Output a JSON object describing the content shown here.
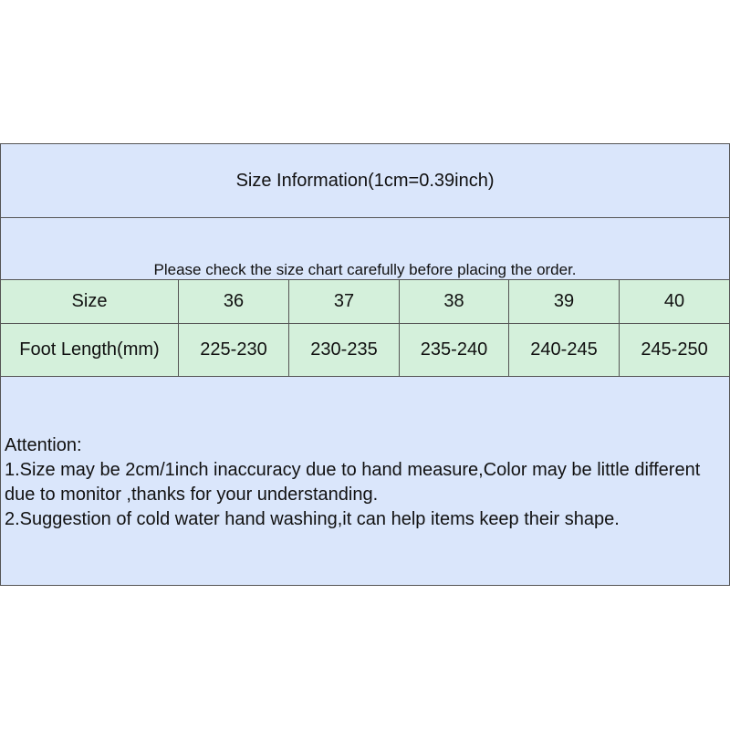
{
  "title": "Size Information(1cm=0.39inch)",
  "note": "Please check the size chart carefully before placing the order.",
  "table": {
    "size_label": "Size",
    "sizes": [
      "36",
      "37",
      "38",
      "39",
      "40"
    ],
    "foot_label": "Foot Length(mm)",
    "foot_lengths": [
      "225-230",
      "230-235",
      "235-240",
      "240-245",
      "245-250"
    ]
  },
  "attention": {
    "heading": "Attention:",
    "line1": "1.Size may be 2cm/1inch inaccuracy due to hand measure,Color may be little different due to monitor ,thanks for your understanding.",
    "line2": "2.Suggestion of cold water hand washing,it can help items keep their shape."
  },
  "colors": {
    "header_bg": "#dae6fb",
    "row_bg": "#d4f0db"
  }
}
